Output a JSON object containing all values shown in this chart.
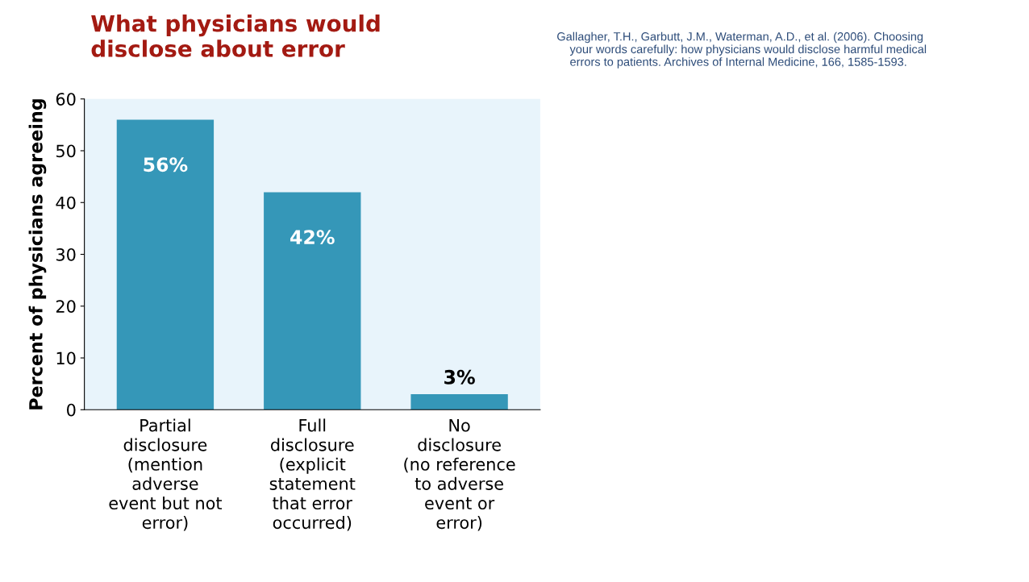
{
  "chart_data": {
    "type": "bar",
    "title": "What physicians would\ndisclose about error",
    "ylabel": "Percent of physicians agreeing",
    "categories": [
      "Partial\ndisclosure\n(mention\nadverse\nevent but not\nerror)",
      "Full\ndisclosure\n(explicit\nstatement\nthat error\noccurred)",
      "No\ndisclosure\n(no reference\nto adverse\nevent or\nerror)"
    ],
    "values": [
      56,
      42,
      3
    ],
    "value_labels": [
      "56%",
      "42%",
      "3%"
    ],
    "color": "#3597b8",
    "ylim": [
      0,
      60
    ],
    "yticks": [
      0,
      10,
      20,
      30,
      40,
      50,
      60
    ],
    "grid": false,
    "annotations": [
      "Gallagher, T.H., Garbutt, J.M., Waterman, A.D., et al. (2006). Choosing\n    your words carefully: how physicians would disclose harmful medical\n    errors to patients. Archives of Internal Medicine, 166, 1585-1593."
    ]
  }
}
